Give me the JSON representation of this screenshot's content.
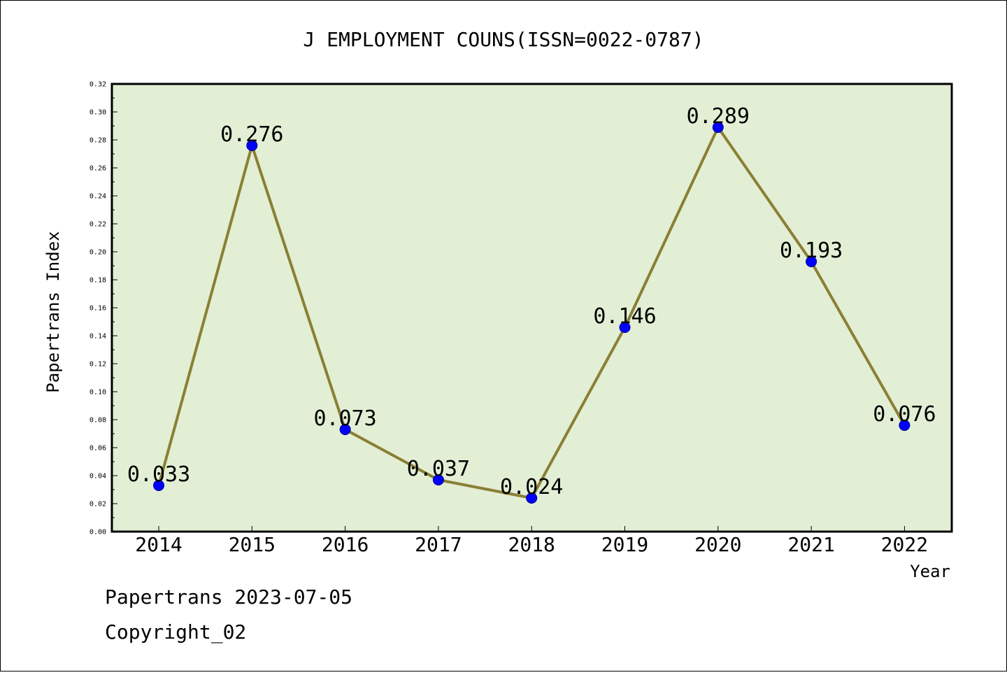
{
  "chart_data": {
    "type": "line",
    "title": "J EMPLOYMENT COUNS(ISSN=0022-0787)",
    "xlabel": "Year",
    "ylabel": "Papertrans Index",
    "categories": [
      "2014",
      "2015",
      "2016",
      "2017",
      "2018",
      "2019",
      "2020",
      "2021",
      "2022"
    ],
    "series": [
      {
        "values": [
          0.033,
          0.276,
          0.073,
          0.037,
          0.024,
          0.146,
          0.289,
          0.193,
          0.076
        ],
        "labels": [
          "0.033",
          "0.276",
          "0.073",
          "0.037",
          "0.024",
          "0.146",
          "0.289",
          "0.193",
          "0.076"
        ]
      }
    ],
    "ylim": [
      0,
      0.32
    ],
    "yticks": [
      "0.00",
      "0.02",
      "0.04",
      "0.06",
      "0.08",
      "0.10",
      "0.12",
      "0.14",
      "0.16",
      "0.18",
      "0.20",
      "0.22",
      "0.24",
      "0.26",
      "0.28",
      "0.30",
      "0.32"
    ],
    "grid": false,
    "legend": "none",
    "colors": {
      "plot_background": "#e2efd5",
      "line": "#8b7f35",
      "marker": "#0000ff",
      "marker_edge": "#00008b",
      "frame": "#000000"
    }
  },
  "footer": {
    "date_line": "Papertrans 2023-07-05",
    "copyright": "Copyright_02"
  }
}
